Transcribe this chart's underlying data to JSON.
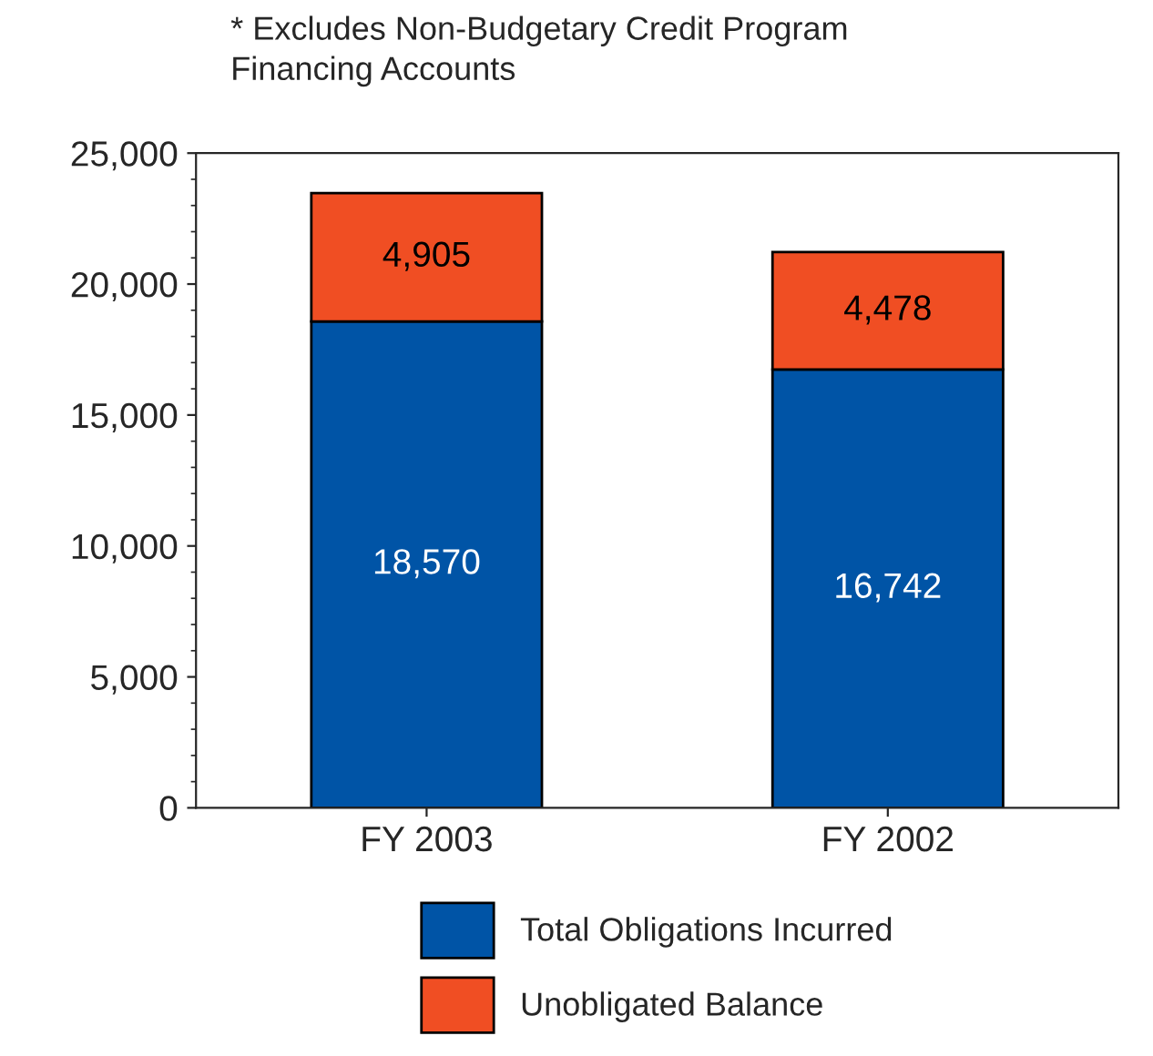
{
  "chart_data": {
    "type": "bar",
    "stacked": true,
    "categories": [
      "FY 2003",
      "FY 2002"
    ],
    "series": [
      {
        "name": "Total Obligations Incurred",
        "color": "#0054a6",
        "values": [
          18570,
          16742
        ],
        "value_labels": [
          "18,570",
          "16,742"
        ]
      },
      {
        "name": "Unobligated Balance",
        "color": "#f04e23",
        "values": [
          4905,
          4478
        ],
        "value_labels": [
          "4,905",
          "4,478"
        ]
      }
    ],
    "ylim": [
      0,
      25000
    ],
    "yticks": [
      {
        "value": 0,
        "label": "0"
      },
      {
        "value": 5000,
        "label": "5,000"
      },
      {
        "value": 10000,
        "label": "10,000"
      },
      {
        "value": 15000,
        "label": "15,000"
      },
      {
        "value": 20000,
        "label": "20,000"
      },
      {
        "value": 25000,
        "label": "25,000"
      }
    ],
    "annotations": [
      "* Excludes Non-Budgetary Credit Program\nFinancing Accounts"
    ],
    "legend": "bottom",
    "grid": false
  }
}
